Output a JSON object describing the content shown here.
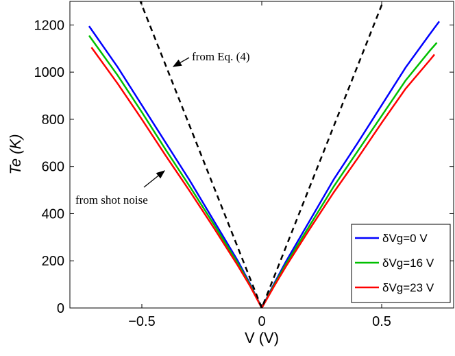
{
  "chart_data": {
    "type": "line",
    "xlabel": "V (V)",
    "ylabel": "Te (K)",
    "xlim": [
      -0.8,
      0.8
    ],
    "ylim": [
      0,
      1300
    ],
    "xticks": [
      {
        "value": -0.5,
        "label": "−0.5"
      },
      0,
      0.5
    ],
    "yticks": [
      0,
      200,
      400,
      600,
      800,
      1000,
      1200
    ],
    "legend": "lower right",
    "series": [
      {
        "name": "δVg=0 V",
        "color": "#0000ff",
        "x": [
          -0.72,
          -0.6,
          -0.5,
          -0.4,
          -0.3,
          -0.2,
          -0.1,
          -0.05,
          0,
          0.05,
          0.1,
          0.2,
          0.3,
          0.4,
          0.5,
          0.6,
          0.7,
          0.74
        ],
        "values": [
          1195,
          1020,
          860,
          700,
          540,
          370,
          200,
          105,
          0,
          100,
          195,
          370,
          545,
          700,
          860,
          1020,
          1160,
          1215
        ]
      },
      {
        "name": "δVg=16 V",
        "color": "#00c000",
        "x": [
          -0.72,
          -0.6,
          -0.5,
          -0.4,
          -0.3,
          -0.2,
          -0.1,
          -0.05,
          0,
          0.05,
          0.1,
          0.2,
          0.3,
          0.4,
          0.5,
          0.6,
          0.7,
          0.73
        ],
        "values": [
          1155,
          985,
          830,
          670,
          515,
          355,
          190,
          100,
          0,
          95,
          185,
          350,
          515,
          665,
          815,
          965,
          1090,
          1125
        ]
      },
      {
        "name": "δVg=23 V",
        "color": "#ff0000",
        "x": [
          -0.71,
          -0.6,
          -0.5,
          -0.4,
          -0.3,
          -0.2,
          -0.1,
          -0.05,
          0,
          0.05,
          0.1,
          0.2,
          0.3,
          0.4,
          0.5,
          0.6,
          0.7,
          0.72
        ],
        "values": [
          1105,
          950,
          800,
          645,
          495,
          340,
          180,
          95,
          0,
          90,
          175,
          335,
          490,
          635,
          785,
          930,
          1050,
          1075
        ]
      }
    ],
    "reference": {
      "color": "#000000",
      "x": [
        -0.51,
        0,
        0.51
      ],
      "values": [
        1310,
        0,
        1310
      ]
    },
    "annotations": [
      "from Eq. (4)",
      "from shot noise"
    ]
  }
}
